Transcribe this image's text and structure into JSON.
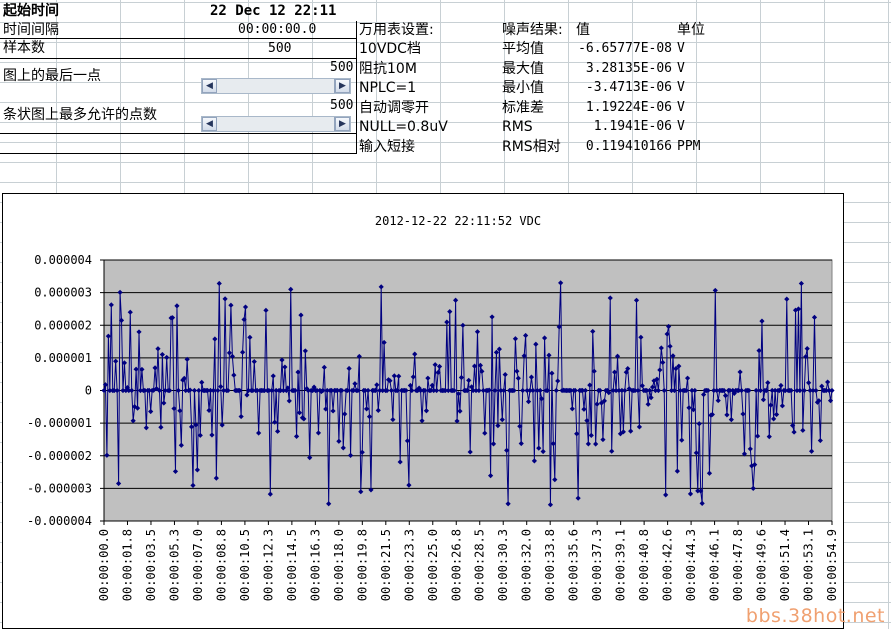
{
  "left_table": {
    "start_time_label": "起始时间",
    "start_time_value": "22 Dec 12 22:11",
    "interval_label": "时间间隔",
    "interval_value": "00:00:00.0",
    "samples_label": "样本数",
    "samples_value": "500",
    "last_point_label": "图上的最后一点",
    "last_point_value": "500",
    "max_points_label": "条状图上最多允许的点数",
    "max_points_value": "500"
  },
  "settings": {
    "header": "万用表设置:",
    "items": [
      "10VDC档",
      "阻抗10M",
      "NPLC=1",
      "自动调零开",
      "NULL=0.8uV",
      "输入短接"
    ]
  },
  "noise": {
    "header_label": "噪声结果:",
    "header_value": "值",
    "header_unit": "单位",
    "rows": [
      {
        "name": "平均值",
        "value": "-6.65777E-08",
        "unit": "V"
      },
      {
        "name": "最大值",
        "value": "3.28135E-06",
        "unit": "V"
      },
      {
        "name": "最小值",
        "value": "-3.4713E-06",
        "unit": "V"
      },
      {
        "name": "标准差",
        "value": "1.19224E-06",
        "unit": "V"
      },
      {
        "name": "RMS",
        "value": "1.1941E-06",
        "unit": "V"
      },
      {
        "name": "RMS相对",
        "value": "0.119410166",
        "unit": "PPM"
      }
    ]
  },
  "chart_data": {
    "type": "line",
    "title": "2012-12-22 22:11:52 VDC",
    "ylim": [
      -4e-06,
      4e-06
    ],
    "yticks": [
      "0.000004",
      "0.000003",
      "0.000002",
      "0.000001",
      "0",
      "-0.000001",
      "-0.000002",
      "-0.000003",
      "-0.000004"
    ],
    "xticks": [
      "00:00:00.0",
      "00:00:01.8",
      "00:00:03.5",
      "00:00:05.3",
      "00:00:07.0",
      "00:00:08.8",
      "00:00:10.5",
      "00:00:12.3",
      "00:00:14.5",
      "00:00:16.3",
      "00:00:18.0",
      "00:00:19.8",
      "00:00:21.5",
      "00:00:23.3",
      "00:00:25.0",
      "00:00:26.8",
      "00:00:28.5",
      "00:00:30.3",
      "00:00:32.0",
      "00:00:33.8",
      "00:00:35.6",
      "00:00:37.3",
      "00:00:39.1",
      "00:00:40.8",
      "00:00:42.6",
      "00:00:44.3",
      "00:00:46.1",
      "00:00:47.8",
      "00:00:49.6",
      "00:00:51.4",
      "00:00:53.1",
      "00:00:54.9"
    ],
    "grid": true,
    "n_points": 500,
    "max": 3.28135e-06,
    "min": -3.4713e-06,
    "std": 1.19224e-06,
    "mean": -6.65777e-08,
    "series_color": "#000080",
    "plot_bg": "#c0c0c0"
  },
  "watermark": "bbs.38hot.net"
}
